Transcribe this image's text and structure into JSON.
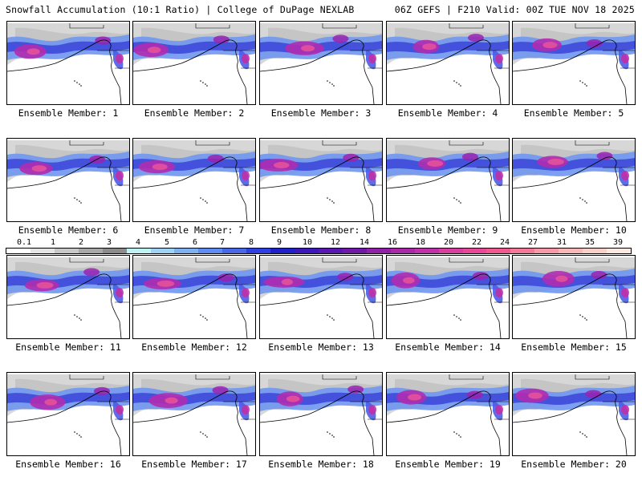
{
  "header": {
    "title_left": "Snowfall Accumulation (10:1 Ratio) | College of DuPage NEXLAB",
    "title_right": "06Z GEFS | F210 Valid: 00Z TUE NOV 18 2025"
  },
  "colorbar": {
    "labels": [
      "0.1",
      "1",
      "2",
      "3",
      "4",
      "5",
      "6",
      "7",
      "8",
      "9",
      "10",
      "12",
      "14",
      "16",
      "18",
      "20",
      "22",
      "24",
      "27",
      "31",
      "35",
      "39"
    ],
    "colors": [
      "#ffffff",
      "#e4e4e4",
      "#c8c8c8",
      "#a8a8a8",
      "#8c8c8c",
      "#bff2f2",
      "#9fd3f5",
      "#7fb0f0",
      "#5f8cf0",
      "#4868e8",
      "#3040e0",
      "#2020c8",
      "#3c18b8",
      "#5818b0",
      "#7018a8",
      "#9020a8",
      "#a828a8",
      "#c030a8",
      "#d840a0",
      "#e84898",
      "#f05890",
      "#f47898",
      "#f898a8",
      "#f8b8b8",
      "#f8d0c8",
      "#fce8e0"
    ]
  },
  "members": [
    {
      "label": "Ensemble Member: 1"
    },
    {
      "label": "Ensemble Member: 2"
    },
    {
      "label": "Ensemble Member: 3"
    },
    {
      "label": "Ensemble Member: 4"
    },
    {
      "label": "Ensemble Member: 5"
    },
    {
      "label": "Ensemble Member: 6"
    },
    {
      "label": "Ensemble Member: 7"
    },
    {
      "label": "Ensemble Member: 8"
    },
    {
      "label": "Ensemble Member: 9"
    },
    {
      "label": "Ensemble Member: 10"
    },
    {
      "label": "Ensemble Member: 11"
    },
    {
      "label": "Ensemble Member: 12"
    },
    {
      "label": "Ensemble Member: 13"
    },
    {
      "label": "Ensemble Member: 14"
    },
    {
      "label": "Ensemble Member: 15"
    },
    {
      "label": "Ensemble Member: 16"
    },
    {
      "label": "Ensemble Member: 17"
    },
    {
      "label": "Ensemble Member: 18"
    },
    {
      "label": "Ensemble Member: 19"
    },
    {
      "label": "Ensemble Member: 20"
    }
  ]
}
